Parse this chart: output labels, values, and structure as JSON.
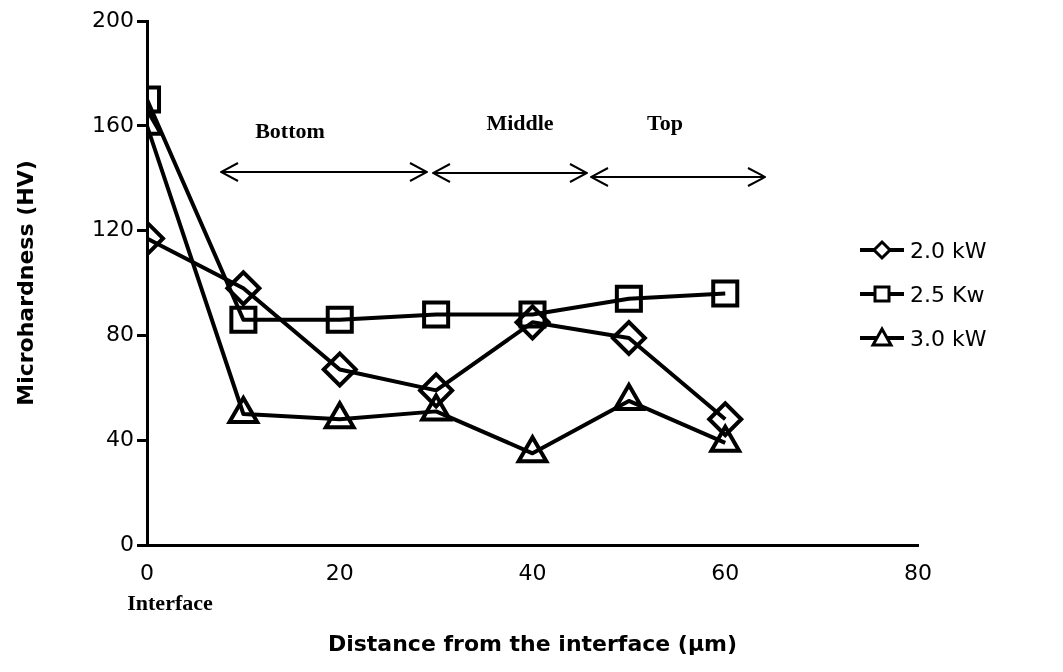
{
  "chart_data": {
    "type": "line",
    "xlabel": "Distance from the interface (µm)",
    "ylabel": "Microhardness (HV)",
    "x": [
      0,
      10,
      20,
      30,
      40,
      50,
      60
    ],
    "series": [
      {
        "name": "2.0 kW",
        "color": "#000000",
        "marker": "diamond",
        "values": [
          117,
          98,
          67,
          59,
          85,
          79,
          48
        ]
      },
      {
        "name": "2.5 Kw",
        "color": "#000000",
        "marker": "square",
        "values": [
          170,
          86,
          86,
          88,
          88,
          94,
          96
        ]
      },
      {
        "name": "3.0 kW",
        "color": "#000000",
        "marker": "triangle",
        "values": [
          160,
          50,
          48,
          51,
          35,
          55,
          39
        ]
      }
    ],
    "xlim": [
      0,
      80
    ],
    "xticks": [
      0,
      20,
      40,
      60,
      80
    ],
    "ylim": [
      0,
      200
    ],
    "yticks": [
      0,
      40,
      80,
      120,
      160,
      200
    ],
    "annotations": [
      "Bottom",
      "Middle",
      "Top",
      "Interface"
    ],
    "legend": "right",
    "grid": false,
    "line_style": "solid"
  }
}
